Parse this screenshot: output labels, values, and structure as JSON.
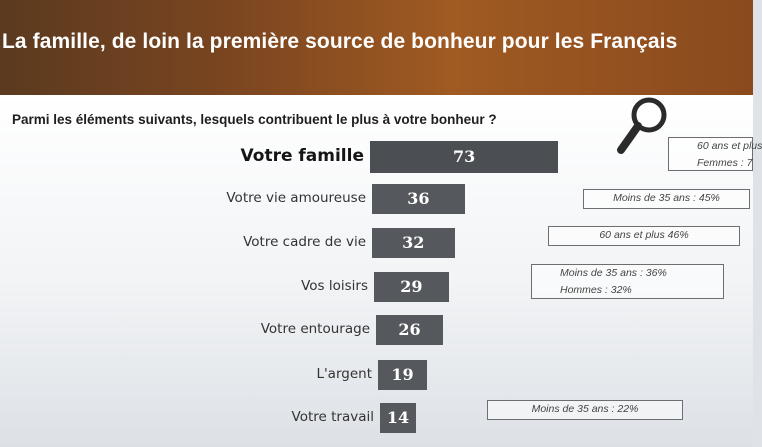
{
  "title": "La famille, de loin la première source de bonheur pour les Français",
  "question": "Parmi les éléments suivants, lesquels contribuent le plus à votre bonheur ?",
  "chart_data": {
    "type": "bar",
    "orientation": "horizontal",
    "categories": [
      "Votre famille",
      "Votre vie amoureuse",
      "Votre cadre de vie",
      "Vos loisirs",
      "Votre entourage",
      "L'argent",
      "Votre travail"
    ],
    "values": [
      73,
      36,
      32,
      29,
      26,
      19,
      14
    ],
    "annotations": [
      {
        "category": "Votre famille",
        "lines": [
          "60 ans et plus",
          "Femmes : 7"
        ]
      },
      {
        "category": "Votre vie amoureuse",
        "lines": [
          "Moins de 35 ans : 45%"
        ]
      },
      {
        "category": "Votre cadre de vie",
        "lines": [
          "60 ans et plus 46%"
        ]
      },
      {
        "category": "Vos loisirs",
        "lines": [
          "Moins de 35 ans : 36%",
          "Hommes : 32%"
        ]
      },
      {
        "category": "Votre travail",
        "lines": [
          "Moins de 35 ans : 22%"
        ]
      }
    ]
  },
  "colors": {
    "header": "#7a4520",
    "bar": "#55585d",
    "value_text": "#ffffff"
  },
  "icons": {
    "magnifier": "magnifier-icon"
  }
}
